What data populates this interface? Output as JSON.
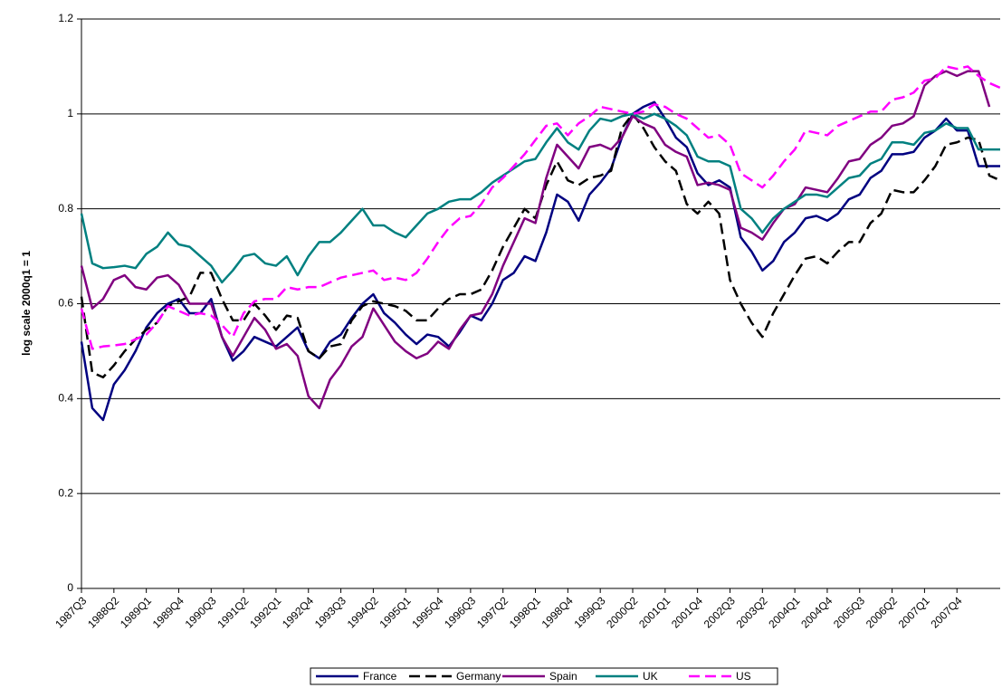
{
  "chart_data": {
    "type": "line",
    "ylabel": "log scale 2000q1 = 1",
    "ylim": [
      0,
      1.2
    ],
    "yticks": [
      0,
      0.2,
      0.4,
      0.6,
      0.8,
      1,
      1.2
    ],
    "grid": true,
    "legend": "bottom",
    "categories": [
      "1987Q3",
      null,
      null,
      "1988Q2",
      null,
      null,
      "1989Q1",
      null,
      null,
      "1989Q4",
      null,
      null,
      "1990Q3",
      null,
      null,
      "1991Q2",
      null,
      null,
      "1992Q1",
      null,
      null,
      "1992Q4",
      null,
      null,
      "1993Q3",
      null,
      null,
      "1994Q2",
      null,
      null,
      "1995Q1",
      null,
      null,
      "1995Q4",
      null,
      null,
      "1996Q3",
      null,
      null,
      "1997Q2",
      null,
      null,
      "1998Q1",
      null,
      null,
      "1998Q4",
      null,
      null,
      "1999Q3",
      null,
      null,
      "2000Q2",
      null,
      null,
      "2001Q1",
      null,
      null,
      "2001Q4",
      null,
      null,
      "2002Q3",
      null,
      null,
      "2003Q2",
      null,
      null,
      "2004Q1",
      null,
      null,
      "2004Q4",
      null,
      null,
      "2005Q3",
      null,
      null,
      "2006Q2",
      null,
      null,
      "2007Q1",
      null,
      null,
      "2007Q4",
      null,
      null,
      null,
      null
    ],
    "series": [
      {
        "name": "France",
        "color": "#000080",
        "dashed": false,
        "values": [
          0.52,
          0.38,
          0.355,
          0.43,
          0.46,
          0.5,
          0.55,
          0.58,
          0.6,
          0.61,
          0.58,
          0.58,
          0.61,
          0.53,
          0.48,
          0.5,
          0.53,
          0.52,
          0.51,
          0.53,
          0.55,
          0.5,
          0.485,
          0.52,
          0.535,
          0.57,
          0.6,
          0.62,
          0.58,
          0.56,
          0.535,
          0.515,
          0.535,
          0.53,
          0.51,
          0.54,
          0.575,
          0.565,
          0.6,
          0.65,
          0.665,
          0.7,
          0.69,
          0.75,
          0.83,
          0.815,
          0.775,
          0.83,
          0.855,
          0.885,
          0.95,
          1.0,
          1.015,
          1.025,
          0.99,
          0.95,
          0.93,
          0.875,
          0.85,
          0.86,
          0.845,
          0.74,
          0.71,
          0.67,
          0.69,
          0.73,
          0.75,
          0.78,
          0.785,
          0.775,
          0.79,
          0.82,
          0.83,
          0.865,
          0.88,
          0.915,
          0.915,
          0.92,
          0.95,
          0.965,
          0.99,
          0.965,
          0.965,
          0.89,
          0.89,
          0.89
        ]
      },
      {
        "name": "Germany",
        "color": "#000000",
        "dashed": true,
        "values": [
          0.615,
          0.455,
          0.445,
          0.47,
          0.5,
          0.525,
          0.545,
          0.56,
          0.595,
          0.605,
          0.615,
          0.665,
          0.665,
          0.61,
          0.565,
          0.565,
          0.6,
          0.575,
          0.545,
          0.575,
          0.57,
          0.5,
          0.485,
          0.51,
          0.515,
          0.565,
          0.595,
          0.605,
          0.6,
          0.595,
          0.585,
          0.565,
          0.565,
          0.59,
          0.61,
          0.62,
          0.62,
          0.63,
          0.67,
          0.72,
          0.76,
          0.8,
          0.78,
          0.85,
          0.9,
          0.86,
          0.85,
          0.865,
          0.87,
          0.88,
          0.97,
          1.0,
          0.97,
          0.93,
          0.9,
          0.88,
          0.81,
          0.79,
          0.815,
          0.79,
          0.65,
          0.6,
          0.56,
          0.53,
          0.58,
          0.62,
          0.66,
          0.695,
          0.7,
          0.685,
          0.71,
          0.73,
          0.73,
          0.77,
          0.79,
          0.84,
          0.835,
          0.835,
          0.86,
          0.89,
          0.935,
          0.94,
          0.95,
          0.945,
          0.87,
          0.86
        ]
      },
      {
        "name": "Spain",
        "color": "#800080",
        "dashed": false,
        "values": [
          0.68,
          0.59,
          0.61,
          0.65,
          0.66,
          0.635,
          0.63,
          0.655,
          0.66,
          0.64,
          0.6,
          0.6,
          0.6,
          0.53,
          0.49,
          0.53,
          0.57,
          0.545,
          0.505,
          0.515,
          0.49,
          0.405,
          0.38,
          0.44,
          0.47,
          0.51,
          0.53,
          0.59,
          0.555,
          0.52,
          0.5,
          0.485,
          0.495,
          0.52,
          0.505,
          0.545,
          0.575,
          0.58,
          0.62,
          0.68,
          0.73,
          0.78,
          0.77,
          0.865,
          0.935,
          0.91,
          0.885,
          0.93,
          0.935,
          0.925,
          0.95,
          0.995,
          0.98,
          0.97,
          0.935,
          0.92,
          0.91,
          0.85,
          0.855,
          0.85,
          0.84,
          0.76,
          0.75,
          0.735,
          0.77,
          0.8,
          0.81,
          0.845,
          0.84,
          0.835,
          0.865,
          0.9,
          0.905,
          0.935,
          0.95,
          0.975,
          0.98,
          0.995,
          1.06,
          1.08,
          1.09,
          1.08,
          1.09,
          1.09,
          1.015,
          null
        ]
      },
      {
        "name": "UK",
        "color": "#008080",
        "dashed": false,
        "values": [
          0.79,
          0.685,
          0.675,
          0.677,
          0.68,
          0.675,
          0.705,
          0.72,
          0.75,
          0.725,
          0.72,
          0.7,
          0.68,
          0.645,
          0.67,
          0.7,
          0.705,
          0.685,
          0.68,
          0.7,
          0.66,
          0.7,
          0.73,
          0.73,
          0.75,
          0.775,
          0.8,
          0.765,
          0.765,
          0.75,
          0.74,
          0.765,
          0.79,
          0.8,
          0.815,
          0.82,
          0.82,
          0.835,
          0.855,
          0.87,
          0.885,
          0.9,
          0.905,
          0.94,
          0.97,
          0.94,
          0.925,
          0.965,
          0.99,
          0.985,
          0.995,
          1.0,
          0.99,
          1.0,
          0.99,
          0.975,
          0.955,
          0.91,
          0.9,
          0.9,
          0.89,
          0.8,
          0.78,
          0.75,
          0.78,
          0.8,
          0.815,
          0.83,
          0.83,
          0.825,
          0.845,
          0.865,
          0.87,
          0.895,
          0.905,
          0.94,
          0.94,
          0.935,
          0.96,
          0.965,
          0.98,
          0.97,
          0.97,
          0.925,
          0.925,
          0.925
        ]
      },
      {
        "name": "US",
        "color": "#ff00ff",
        "dashed": true,
        "values": [
          0.59,
          0.505,
          0.51,
          0.512,
          0.515,
          0.525,
          0.535,
          0.56,
          0.595,
          0.585,
          0.575,
          0.58,
          0.575,
          0.555,
          0.53,
          0.58,
          0.605,
          0.61,
          0.61,
          0.635,
          0.63,
          0.635,
          0.635,
          0.645,
          0.655,
          0.66,
          0.665,
          0.67,
          0.65,
          0.655,
          0.65,
          0.665,
          0.695,
          0.73,
          0.76,
          0.78,
          0.785,
          0.81,
          0.845,
          0.865,
          0.89,
          0.915,
          0.945,
          0.975,
          0.98,
          0.955,
          0.98,
          0.995,
          1.015,
          1.01,
          1.005,
          1.0,
          1.005,
          1.02,
          1.015,
          1.0,
          0.99,
          0.97,
          0.95,
          0.955,
          0.935,
          0.875,
          0.86,
          0.845,
          0.87,
          0.9,
          0.925,
          0.965,
          0.96,
          0.955,
          0.975,
          0.985,
          0.995,
          1.005,
          1.005,
          1.03,
          1.035,
          1.045,
          1.07,
          1.075,
          1.1,
          1.095,
          1.1,
          1.08,
          1.065,
          1.055
        ]
      }
    ]
  }
}
